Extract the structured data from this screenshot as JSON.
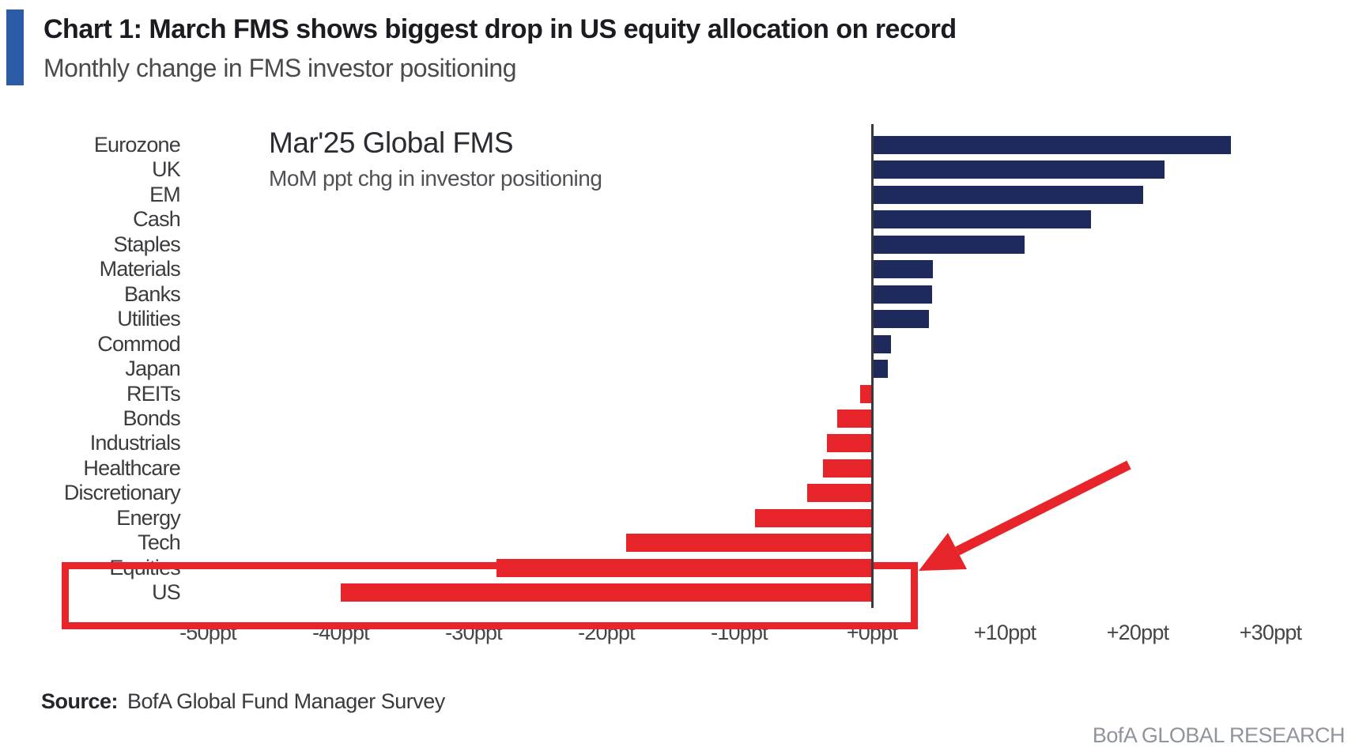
{
  "header": {
    "title": "Chart 1: March FMS shows biggest drop in US equity allocation on record",
    "subtitle": "Monthly change in FMS investor positioning"
  },
  "footer": {
    "source_label": "Source:",
    "source_text": "BofA Global Fund Manager Survey",
    "research_credit": "BofA GLOBAL RESEARCH"
  },
  "colors": {
    "accent_bar": "#2d5ca6",
    "bar_positive": "#1f2a5c",
    "bar_negative": "#e8242b",
    "highlight": "#e8242b",
    "axis_line": "#3a3a3e"
  },
  "chart_data": {
    "type": "bar",
    "orientation": "horizontal",
    "annotation": {
      "title": "Mar'25 Global FMS",
      "subtitle": "MoM ppt chg in investor positioning"
    },
    "categories": [
      "Eurozone",
      "UK",
      "EM",
      "Cash",
      "Staples",
      "Materials",
      "Banks",
      "Utilities",
      "Commod",
      "Japan",
      "REITs",
      "Bonds",
      "Industrials",
      "Healthcare",
      "Discretionary",
      "Energy",
      "Tech",
      "Equities",
      "US"
    ],
    "values": [
      27,
      22,
      20.4,
      16.5,
      11.5,
      4.6,
      4.5,
      4.3,
      1.4,
      1.2,
      -0.9,
      -2.6,
      -3.4,
      -3.7,
      -4.9,
      -8.8,
      -18.5,
      -28.3,
      -40
    ],
    "unit": "ppt",
    "xlabel": "",
    "ylabel": "",
    "xlim": [
      -50,
      30
    ],
    "grid": false,
    "legend": "none",
    "x_ticks": [
      {
        "v": -50,
        "label": "-50ppt"
      },
      {
        "v": -40,
        "label": "-40ppt"
      },
      {
        "v": -30,
        "label": "-30ppt"
      },
      {
        "v": -20,
        "label": "-20ppt"
      },
      {
        "v": -10,
        "label": "-10ppt"
      },
      {
        "v": 0,
        "label": "+0ppt"
      },
      {
        "v": 10,
        "label": "+10ppt"
      },
      {
        "v": 20,
        "label": "+20ppt"
      },
      {
        "v": 30,
        "label": "+30ppt"
      }
    ],
    "highlighted_categories": [
      "Equities",
      "US"
    ]
  }
}
